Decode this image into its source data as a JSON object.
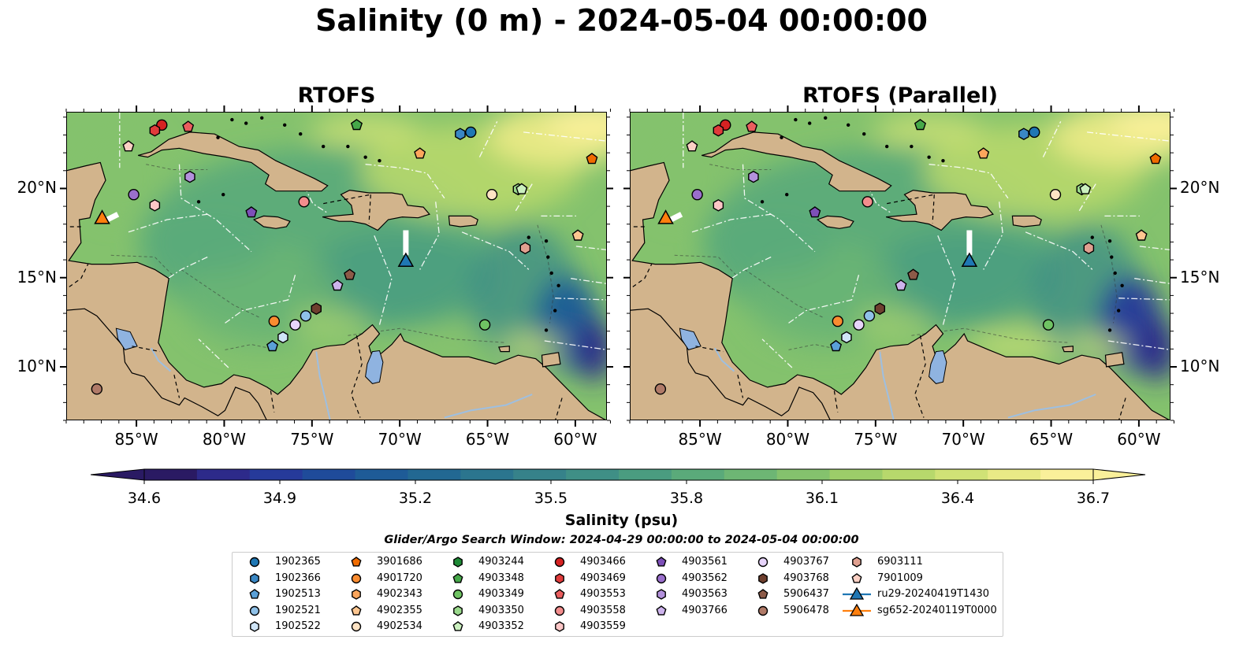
{
  "title": "Salinity (0 m) - 2024-05-04 00:00:00",
  "panels": [
    {
      "title": "RTOFS",
      "variant": "a"
    },
    {
      "title": "RTOFS (Parallel)",
      "variant": "b"
    }
  ],
  "axes": {
    "lon_ticks": [
      "85°W",
      "80°W",
      "75°W",
      "70°W",
      "65°W",
      "60°W"
    ],
    "lat_ticks": [
      "20°N",
      "15°N",
      "10°N"
    ],
    "lon_values": [
      -85,
      -80,
      -75,
      -70,
      -65,
      -60
    ],
    "lat_values": [
      20,
      15,
      10
    ],
    "lon_range": [
      -89,
      -58.2
    ],
    "lat_range": [
      7,
      24.3
    ]
  },
  "colorbar": {
    "label": "Salinity (psu)",
    "ticks": [
      "34.6",
      "34.9",
      "35.2",
      "35.5",
      "35.8",
      "36.1",
      "36.4",
      "36.7"
    ],
    "range": [
      34.6,
      36.7
    ],
    "extend": "both",
    "colors": [
      "#2a1a63",
      "#2d2a8a",
      "#263a9a",
      "#1f4b9a",
      "#1e5b97",
      "#226892",
      "#2b758e",
      "#36828a",
      "#3f8f86",
      "#4a9c80",
      "#5aaa7a",
      "#6db674",
      "#84c26d",
      "#9ccd69",
      "#b7d86c",
      "#d0e276",
      "#e9ea86",
      "#faf09a"
    ]
  },
  "search_window": "Glider/Argo Search Window: 2024-04-29 00:00:00 to 2024-05-04 00:00:00",
  "legend": {
    "columns": [
      [
        {
          "label": "1902365",
          "marker": "circle",
          "color": "#1f77b4"
        },
        {
          "label": "1902366",
          "marker": "hexagon",
          "color": "#3a87c4"
        },
        {
          "label": "1902513",
          "marker": "pentagon",
          "color": "#5aa0d8"
        },
        {
          "label": "1902521",
          "marker": "circle",
          "color": "#8fc1e8"
        },
        {
          "label": "1902522",
          "marker": "hexagon",
          "color": "#cfe5f7"
        }
      ],
      [
        {
          "label": "3901686",
          "marker": "pentagon",
          "color": "#f06c00"
        },
        {
          "label": "4901720",
          "marker": "circle",
          "color": "#fa8c30"
        },
        {
          "label": "4902343",
          "marker": "hexagon",
          "color": "#fda65c"
        },
        {
          "label": "4902355",
          "marker": "pentagon",
          "color": "#fdc690"
        },
        {
          "label": "4902534",
          "marker": "circle",
          "color": "#fee3c4"
        }
      ],
      [
        {
          "label": "4903244",
          "marker": "hexagon",
          "color": "#1e8a36"
        },
        {
          "label": "4903348",
          "marker": "pentagon",
          "color": "#46a849"
        },
        {
          "label": "4903349",
          "marker": "circle",
          "color": "#6fc363"
        },
        {
          "label": "4903350",
          "marker": "hexagon",
          "color": "#9ad98c"
        },
        {
          "label": "4903352",
          "marker": "pentagon",
          "color": "#cbf0bf"
        }
      ],
      [
        {
          "label": "4903466",
          "marker": "circle",
          "color": "#d62222"
        },
        {
          "label": "4903469",
          "marker": "hexagon",
          "color": "#e03b3b"
        },
        {
          "label": "4903553",
          "marker": "pentagon",
          "color": "#ea5e5e"
        },
        {
          "label": "4903558",
          "marker": "circle",
          "color": "#f38d8d"
        },
        {
          "label": "4903559",
          "marker": "hexagon",
          "color": "#fcc6c6"
        }
      ],
      [
        {
          "label": "4903561",
          "marker": "pentagon",
          "color": "#7d4fb8"
        },
        {
          "label": "4903562",
          "marker": "circle",
          "color": "#9a6fcc"
        },
        {
          "label": "4903563",
          "marker": "hexagon",
          "color": "#b391dc"
        },
        {
          "label": "4903766",
          "marker": "pentagon",
          "color": "#cdb3ec"
        }
      ],
      [
        {
          "label": "4903767",
          "marker": "circle",
          "color": "#e7d4fa"
        },
        {
          "label": "4903768",
          "marker": "hexagon",
          "color": "#6e3f2e"
        },
        {
          "label": "5906437",
          "marker": "pentagon",
          "color": "#8c5a48"
        },
        {
          "label": "5906478",
          "marker": "circle",
          "color": "#b07a68"
        }
      ],
      [
        {
          "label": "6903111",
          "marker": "hexagon",
          "color": "#e0a090"
        },
        {
          "label": "7901009",
          "marker": "pentagon",
          "color": "#fbd0c4"
        },
        {
          "label": "ru29-20240419T1430",
          "marker": "triangle-line",
          "color": "#1f77b4"
        },
        {
          "label": "sg652-20240119T0000",
          "marker": "triangle-line",
          "color": "#ff7f0e"
        }
      ]
    ]
  },
  "floats": [
    {
      "id": "4903466",
      "lon": -83.6,
      "lat": 23.6,
      "marker": "circle",
      "color": "#d62222"
    },
    {
      "id": "4903469",
      "lon": -84.0,
      "lat": 23.3,
      "marker": "hexagon",
      "color": "#e03b3b"
    },
    {
      "id": "4903553",
      "lon": -82.1,
      "lat": 23.5,
      "marker": "pentagon",
      "color": "#ea5e5e"
    },
    {
      "id": "7901009",
      "lon": -85.5,
      "lat": 22.4,
      "marker": "pentagon",
      "color": "#fbd0c4"
    },
    {
      "id": "4903348",
      "lon": -72.5,
      "lat": 23.6,
      "marker": "pentagon",
      "color": "#46a849"
    },
    {
      "id": "1902366",
      "lon": -66.6,
      "lat": 23.1,
      "marker": "hexagon",
      "color": "#3a87c4"
    },
    {
      "id": "1902365",
      "lon": -66.0,
      "lat": 23.2,
      "marker": "circle",
      "color": "#1f77b4"
    },
    {
      "id": "4902343",
      "lon": -68.9,
      "lat": 22.0,
      "marker": "pentagon",
      "color": "#fda65c"
    },
    {
      "id": "3901686",
      "lon": -59.1,
      "lat": 21.7,
      "marker": "pentagon",
      "color": "#f06c00"
    },
    {
      "id": "4903563",
      "lon": -82.0,
      "lat": 20.7,
      "marker": "hexagon",
      "color": "#b391dc"
    },
    {
      "id": "4903562",
      "lon": -85.2,
      "lat": 19.7,
      "marker": "circle",
      "color": "#9a6fcc"
    },
    {
      "id": "4903559",
      "lon": -84.0,
      "lat": 19.1,
      "marker": "hexagon",
      "color": "#fcc6c6"
    },
    {
      "id": "4903561",
      "lon": -78.5,
      "lat": 18.7,
      "marker": "pentagon",
      "color": "#7d4fb8"
    },
    {
      "id": "4903558",
      "lon": -75.5,
      "lat": 19.3,
      "marker": "circle",
      "color": "#f38d8d"
    },
    {
      "id": "4902534",
      "lon": -64.8,
      "lat": 19.7,
      "marker": "circle",
      "color": "#fee3c4"
    },
    {
      "id": "4903350",
      "lon": -63.3,
      "lat": 20.0,
      "marker": "hexagon",
      "color": "#9ad98c"
    },
    {
      "id": "4903352",
      "lon": -63.1,
      "lat": 20.0,
      "marker": "pentagon",
      "color": "#cbf0bf"
    },
    {
      "id": "4902355",
      "lon": -59.9,
      "lat": 17.4,
      "marker": "pentagon",
      "color": "#fdc690"
    },
    {
      "id": "6903111",
      "lon": -62.9,
      "lat": 16.7,
      "marker": "hexagon",
      "color": "#e0a090"
    },
    {
      "id": "4903766",
      "lon": -73.6,
      "lat": 14.6,
      "marker": "pentagon",
      "color": "#cdb3ec"
    },
    {
      "id": "5906437",
      "lon": -72.9,
      "lat": 15.2,
      "marker": "pentagon",
      "color": "#8c5a48"
    },
    {
      "id": "4903768",
      "lon": -74.8,
      "lat": 13.3,
      "marker": "hexagon",
      "color": "#6e3f2e"
    },
    {
      "id": "4901720",
      "lon": -77.2,
      "lat": 12.6,
      "marker": "circle",
      "color": "#fa8c30"
    },
    {
      "id": "1902521",
      "lon": -75.4,
      "lat": 12.9,
      "marker": "circle",
      "color": "#8fc1e8"
    },
    {
      "id": "4903767",
      "lon": -76.0,
      "lat": 12.4,
      "marker": "circle",
      "color": "#e7d4fa"
    },
    {
      "id": "1902522",
      "lon": -76.7,
      "lat": 11.7,
      "marker": "hexagon",
      "color": "#cfe5f7"
    },
    {
      "id": "1902513",
      "lon": -77.3,
      "lat": 11.2,
      "marker": "pentagon",
      "color": "#5aa0d8"
    },
    {
      "id": "4903349",
      "lon": -65.2,
      "lat": 12.4,
      "marker": "circle",
      "color": "#6fc363"
    },
    {
      "id": "5906478",
      "lon": -87.3,
      "lat": 8.8,
      "marker": "circle",
      "color": "#b07a68"
    }
  ],
  "gliders": [
    {
      "id": "ru29-20240419T1430",
      "lon": -69.7,
      "lat": 16.0,
      "color": "#1f77b4",
      "track": [
        [
          -69.7,
          17.7
        ],
        [
          -69.7,
          16.3
        ]
      ]
    },
    {
      "id": "sg652-20240119T0000",
      "lon": -87.0,
      "lat": 18.4,
      "color": "#ff7f0e",
      "track": [
        [
          -86.1,
          18.6
        ],
        [
          -86.7,
          18.3
        ]
      ]
    }
  ]
}
